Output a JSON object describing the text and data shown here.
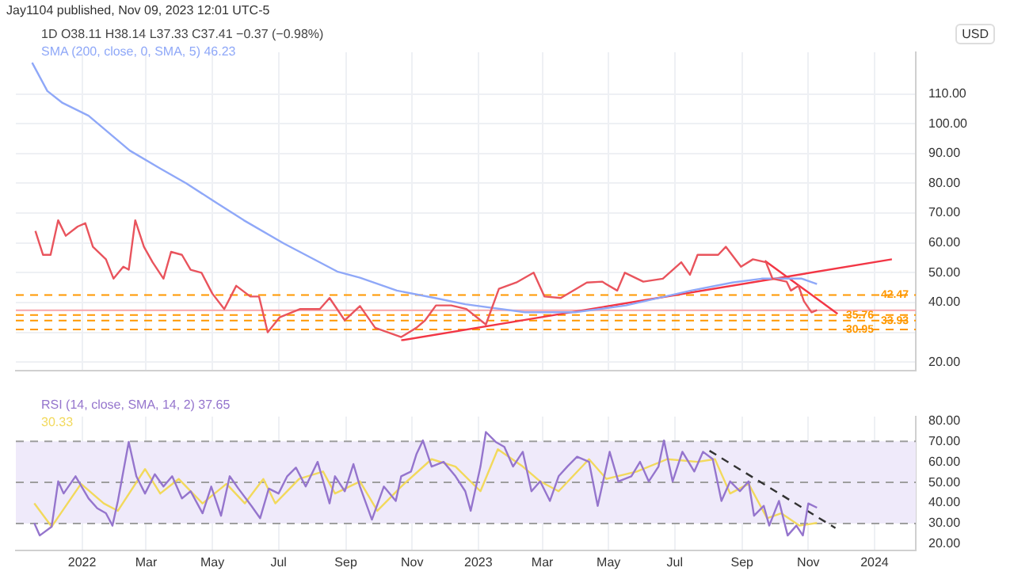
{
  "chart_data": [
    {
      "type": "line",
      "title": "1D  O38.11 H38.14 L37.33 C37.41 −0.37 (−0.98%)",
      "ylabel": "USD",
      "annotations": [
        "Jay1104 published, Nov 09, 2023 12:01 UTC-5"
      ],
      "xlim": [
        "2021-11-01",
        "2024-02-08"
      ],
      "ylim": [
        17,
        124
      ],
      "xticks": [
        {
          "value": "2022-01-01",
          "label": null
        },
        {
          "value": "2022-03-01",
          "label": null
        },
        {
          "value": "2022-05-01",
          "label": null
        },
        {
          "value": "2022-07-01",
          "label": null
        },
        {
          "value": "2022-09-01",
          "label": null
        },
        {
          "value": "2022-11-01",
          "label": null
        },
        {
          "value": "2023-01-01",
          "label": null
        },
        {
          "value": "2023-03-01",
          "label": null
        },
        {
          "value": "2023-05-01",
          "label": null
        },
        {
          "value": "2023-07-01",
          "label": null
        },
        {
          "value": "2023-09-01",
          "label": null
        },
        {
          "value": "2023-11-01",
          "label": null
        },
        {
          "value": "2024-01-01",
          "label": null
        }
      ],
      "yticks": [
        {
          "value": 20,
          "label": "20.00"
        },
        {
          "value": 30,
          "label": null
        },
        {
          "value": 40,
          "label": "40.00"
        },
        {
          "value": 50,
          "label": "50.00"
        },
        {
          "value": 60,
          "label": "60.00"
        },
        {
          "value": 70,
          "label": "70.00"
        },
        {
          "value": 80,
          "label": "80.00"
        },
        {
          "value": 90,
          "label": "90.00"
        },
        {
          "value": 100,
          "label": "100.00"
        },
        {
          "value": 110,
          "label": "110.00"
        }
      ],
      "tick_labels": "y",
      "grid": true,
      "legend": "top left",
      "ref_lines": [
        {
          "axis": "y",
          "value": 42.47,
          "label": "42.47",
          "color": "#ff9800",
          "line_style": "dashed"
        },
        {
          "axis": "y",
          "value": 35.76,
          "label": "35.76",
          "color": "#ff9800",
          "line_style": "dashed"
        },
        {
          "axis": "y",
          "value": 33.93,
          "label": "33.93",
          "color": "#ff9800",
          "line_style": "dashed"
        },
        {
          "axis": "y",
          "value": 30.95,
          "label": "30.95",
          "color": "#ff9800",
          "line_style": "dashed"
        },
        {
          "axis": "y",
          "value": 37.41,
          "label": null,
          "color": "#f7a6ad",
          "line_style": "solid"
        }
      ],
      "series": [
        {
          "type": "line",
          "color": "#e9545d",
          "x": [
            "2021-11-19",
            "2021-11-26",
            "2021-12-03",
            "2021-12-10",
            "2021-12-17",
            "2021-12-28",
            "2022-01-04",
            "2022-01-11",
            "2022-01-23",
            "2022-01-30",
            "2022-02-08",
            "2022-02-13",
            "2022-02-19",
            "2022-02-27",
            "2022-03-07",
            "2022-03-17",
            "2022-03-24",
            "2022-04-03",
            "2022-04-11",
            "2022-04-21",
            "2022-05-01",
            "2022-05-12",
            "2022-05-23",
            "2022-06-05",
            "2022-06-13",
            "2022-06-21",
            "2022-07-02",
            "2022-07-21",
            "2022-08-08",
            "2022-08-17",
            "2022-08-31",
            "2022-09-14",
            "2022-09-28",
            "2022-10-22",
            "2022-11-05",
            "2022-11-13",
            "2022-11-23",
            "2022-12-07",
            "2022-12-21",
            "2023-01-08",
            "2023-01-20",
            "2023-02-05",
            "2023-02-21",
            "2023-03-03",
            "2023-03-18",
            "2023-04-11",
            "2023-04-25",
            "2023-05-09",
            "2023-05-16",
            "2023-06-02",
            "2023-06-20",
            "2023-07-07",
            "2023-07-15",
            "2023-07-22",
            "2023-08-10",
            "2023-08-17",
            "2023-08-31",
            "2023-09-11",
            "2023-09-23",
            "2023-09-29",
            "2023-10-12",
            "2023-10-16",
            "2023-10-23",
            "2023-10-28",
            "2023-11-04",
            "2023-11-09"
          ],
          "values": [
            64,
            56,
            56,
            67.6,
            62.4,
            65.5,
            66.6,
            58.7,
            54.5,
            48,
            52,
            51,
            67.6,
            58.7,
            53.5,
            48,
            57,
            56,
            51,
            50,
            43,
            37.8,
            45.6,
            42,
            42,
            30,
            35,
            37.8,
            37.8,
            41.5,
            34,
            38.8,
            31.5,
            28.4,
            31.5,
            34,
            39,
            39,
            37.8,
            32.6,
            44.6,
            46.7,
            50,
            42,
            41.5,
            46.7,
            47,
            44,
            50,
            47,
            48,
            53.5,
            49.3,
            56,
            56,
            58.7,
            52,
            54.5,
            53.5,
            48,
            47,
            44,
            45.6,
            40.4,
            36.7,
            37.4
          ]
        },
        {
          "type": "line",
          "name": "SMA (200, close, 0, SMA, 5)  46.23",
          "color": "#8fa8f8",
          "x": [
            "2021-11-16",
            "2021-11-30",
            "2021-12-14",
            "2022-01-07",
            "2022-02-14",
            "2022-03-14",
            "2022-04-07",
            "2022-05-05",
            "2022-05-30",
            "2022-07-06",
            "2022-08-24",
            "2022-09-14",
            "2022-10-18",
            "2022-11-22",
            "2022-12-20",
            "2023-02-13",
            "2023-03-31",
            "2023-05-17",
            "2023-07-16",
            "2023-08-23",
            "2023-09-19",
            "2023-10-26",
            "2023-11-09"
          ],
          "values": [
            120.5,
            111,
            107,
            102.7,
            91,
            85,
            80,
            73.4,
            67.6,
            59.8,
            50.4,
            48.3,
            44,
            41.5,
            39.4,
            36.7,
            36.7,
            39,
            44,
            46.7,
            48,
            48,
            46.2
          ]
        },
        {
          "type": "line",
          "color": "#f23645",
          "x": [
            "2022-10-22",
            "2024-01-17"
          ],
          "values": [
            27.3,
            54.5
          ]
        },
        {
          "type": "line",
          "color": "#f23645",
          "x": [
            "2023-09-22",
            "2023-11-28"
          ],
          "values": [
            54,
            36.2
          ]
        }
      ]
    },
    {
      "type": "line",
      "xlim": [
        "2021-11-01",
        "2024-02-08"
      ],
      "ylim": [
        17,
        82
      ],
      "xticks": [
        {
          "value": "2022-01-01",
          "label": "2022"
        },
        {
          "value": "2022-03-01",
          "label": "Mar"
        },
        {
          "value": "2022-05-01",
          "label": "May"
        },
        {
          "value": "2022-07-01",
          "label": "Jul"
        },
        {
          "value": "2022-09-01",
          "label": "Sep"
        },
        {
          "value": "2022-11-01",
          "label": "Nov"
        },
        {
          "value": "2023-01-01",
          "label": "2023"
        },
        {
          "value": "2023-03-01",
          "label": "Mar"
        },
        {
          "value": "2023-05-01",
          "label": "May"
        },
        {
          "value": "2023-07-01",
          "label": "Jul"
        },
        {
          "value": "2023-09-01",
          "label": "Sep"
        },
        {
          "value": "2023-11-01",
          "label": "Nov"
        },
        {
          "value": "2024-01-01",
          "label": "2024"
        }
      ],
      "yticks": [
        {
          "value": 20,
          "label": "20.00"
        },
        {
          "value": 30,
          "label": "30.00"
        },
        {
          "value": 40,
          "label": "40.00"
        },
        {
          "value": 50,
          "label": "50.00"
        },
        {
          "value": 60,
          "label": "60.00"
        },
        {
          "value": 70,
          "label": "70.00"
        },
        {
          "value": 80,
          "label": "80.00"
        }
      ],
      "grid": "x",
      "legend": "top left",
      "bands": [
        {
          "axis": "y",
          "from": 30,
          "to": 70,
          "color": "#efeafa"
        }
      ],
      "ref_lines": [
        {
          "axis": "y",
          "value": 70,
          "label": null,
          "color": "#9e9e9e",
          "line_style": "dashed"
        },
        {
          "axis": "y",
          "value": 50,
          "label": null,
          "color": "#9e9e9e",
          "line_style": "dashed"
        },
        {
          "axis": "y",
          "value": 30,
          "label": null,
          "color": "#9e9e9e",
          "line_style": "dashed"
        }
      ],
      "series": [
        {
          "type": "line",
          "name": "RSI (14, close, SMA, 14, 2)  37.65",
          "color": "#9575cd",
          "x": [
            "2021-11-18",
            "2021-11-23",
            "2021-12-04",
            "2021-12-10",
            "2021-12-15",
            "2021-12-26",
            "2022-01-07",
            "2022-01-15",
            "2022-01-23",
            "2022-01-29",
            "2022-02-03",
            "2022-02-13",
            "2022-02-20",
            "2022-02-28",
            "2022-03-09",
            "2022-03-17",
            "2022-03-25",
            "2022-04-03",
            "2022-04-11",
            "2022-04-22",
            "2022-04-30",
            "2022-05-09",
            "2022-05-17",
            "2022-05-25",
            "2022-06-06",
            "2022-06-14",
            "2022-06-22",
            "2022-07-01",
            "2022-07-09",
            "2022-07-17",
            "2022-07-26",
            "2022-08-06",
            "2022-08-17",
            "2022-08-22",
            "2022-08-31",
            "2022-09-08",
            "2022-09-14",
            "2022-09-25",
            "2022-10-06",
            "2022-10-17",
            "2022-10-22",
            "2022-10-31",
            "2022-11-05",
            "2022-11-11",
            "2022-11-19",
            "2022-11-30",
            "2022-12-11",
            "2022-12-20",
            "2022-12-25",
            "2023-01-03",
            "2023-01-08",
            "2023-01-17",
            "2023-01-25",
            "2023-02-02",
            "2023-02-11",
            "2023-02-19",
            "2023-02-27",
            "2023-03-08",
            "2023-03-16",
            "2023-03-24",
            "2023-04-02",
            "2023-04-13",
            "2023-04-21",
            "2023-05-02",
            "2023-05-10",
            "2023-05-22",
            "2023-05-30",
            "2023-06-07",
            "2023-06-16",
            "2023-06-21",
            "2023-06-29",
            "2023-07-08",
            "2023-07-19",
            "2023-07-27",
            "2023-08-05",
            "2023-08-13",
            "2023-08-21",
            "2023-08-30",
            "2023-09-07",
            "2023-09-12",
            "2023-09-21",
            "2023-09-26",
            "2023-10-05",
            "2023-10-13",
            "2023-10-21",
            "2023-10-27",
            "2023-11-01",
            "2023-11-09"
          ],
          "values": [
            30.2,
            24.2,
            28.5,
            50.5,
            44.6,
            53,
            42.2,
            37.4,
            35,
            29,
            41,
            69.7,
            53,
            44.6,
            54,
            48,
            53,
            42.2,
            45.7,
            35,
            48,
            33.8,
            53,
            47,
            38.6,
            32.6,
            47,
            44.6,
            53,
            57.2,
            48,
            60,
            39.8,
            53,
            45.7,
            58.9,
            48,
            31.9,
            48,
            41,
            53,
            55.3,
            63.7,
            70.4,
            57.7,
            60,
            53,
            45.7,
            36.2,
            57.7,
            74.5,
            69.7,
            67.3,
            57.7,
            64.9,
            45.7,
            50.5,
            41,
            53,
            57.7,
            62.5,
            60,
            38.6,
            64.9,
            50.5,
            53,
            60,
            50.5,
            57.7,
            70.4,
            50.5,
            64.9,
            55.3,
            64.9,
            61.3,
            41,
            50.5,
            45.7,
            50.5,
            33.8,
            38.6,
            29,
            41,
            24.2,
            29,
            24.2,
            39.8,
            37.7
          ]
        },
        {
          "type": "line",
          "name": "30.33",
          "color": "#f2d95c",
          "x": [
            "2021-11-18",
            "2021-12-04",
            "2021-12-31",
            "2022-01-21",
            "2022-02-03",
            "2022-02-28",
            "2022-03-14",
            "2022-03-31",
            "2022-04-22",
            "2022-05-14",
            "2022-05-31",
            "2022-06-17",
            "2022-06-28",
            "2022-07-20",
            "2022-08-11",
            "2022-08-22",
            "2022-09-14",
            "2022-09-30",
            "2022-10-22",
            "2022-11-19",
            "2022-12-11",
            "2023-01-03",
            "2023-01-19",
            "2023-02-11",
            "2023-02-27",
            "2023-03-16",
            "2023-04-13",
            "2023-04-29",
            "2023-05-27",
            "2023-06-24",
            "2023-07-22",
            "2023-08-07",
            "2023-08-21",
            "2023-09-07",
            "2023-09-24",
            "2023-10-07",
            "2023-10-24",
            "2023-11-09"
          ],
          "values": [
            39.8,
            28.5,
            49.3,
            39.8,
            36.2,
            56.5,
            44.6,
            51.7,
            39.8,
            49.3,
            39.8,
            51.7,
            39.8,
            51.7,
            55.3,
            44.6,
            50.5,
            36.2,
            48,
            61.3,
            57.7,
            45.7,
            66.1,
            57.7,
            50.5,
            45.7,
            61.3,
            51.7,
            55.3,
            61.3,
            60,
            61.3,
            44.6,
            49.3,
            32.6,
            35,
            29,
            30.3
          ]
        },
        {
          "type": "line",
          "color": "#333333",
          "line_style": "dashed",
          "x": [
            "2023-08-02",
            "2023-11-26"
          ],
          "values": [
            65.4,
            27.8
          ]
        }
      ]
    }
  ]
}
